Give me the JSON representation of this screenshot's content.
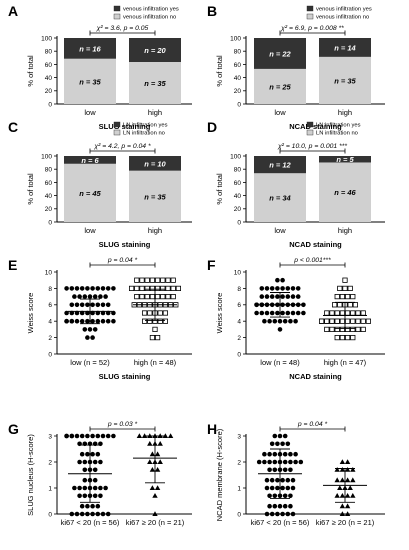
{
  "chart_data": [
    {
      "id": "A",
      "type": "bar",
      "stacked": true,
      "percent": true,
      "categories": [
        "low",
        "high"
      ],
      "series": [
        {
          "name": "venous infiltration no",
          "counts": [
            35,
            35
          ],
          "color": "#d0d0d0"
        },
        {
          "name": "venous infiltration yes",
          "counts": [
            16,
            20
          ],
          "color": "#333333"
        }
      ],
      "annotation": "χ² = 3.6, p = 0.05",
      "xlabel": "SLUG staining",
      "ylabel": "% of total",
      "ylim": [
        0,
        100
      ],
      "yticks": [
        0,
        20,
        40,
        60,
        80,
        100
      ],
      "legend": "top-right"
    },
    {
      "id": "B",
      "type": "bar",
      "stacked": true,
      "percent": true,
      "categories": [
        "low",
        "high"
      ],
      "series": [
        {
          "name": "venous infiltration no",
          "counts": [
            25,
            35
          ],
          "color": "#d0d0d0"
        },
        {
          "name": "venous infiltration yes",
          "counts": [
            22,
            14
          ],
          "color": "#333333"
        }
      ],
      "annotation": "χ² = 6.9, p = 0.008 **",
      "xlabel": "NCAD staining",
      "ylabel": "% of total",
      "ylim": [
        0,
        100
      ],
      "yticks": [
        0,
        20,
        40,
        60,
        80,
        100
      ],
      "legend": "top-right"
    },
    {
      "id": "C",
      "type": "bar",
      "stacked": true,
      "percent": true,
      "categories": [
        "low",
        "high"
      ],
      "series": [
        {
          "name": "LN infiltration no",
          "counts": [
            45,
            35
          ],
          "color": "#d0d0d0"
        },
        {
          "name": "LN infiltration yes",
          "counts": [
            6,
            10
          ],
          "color": "#333333"
        }
      ],
      "annotation": "χ² = 4.2, p = 0.04 *",
      "xlabel": "SLUG staining",
      "ylabel": "% of total",
      "ylim": [
        0,
        100
      ],
      "yticks": [
        0,
        20,
        40,
        60,
        80,
        100
      ],
      "legend": "top-right"
    },
    {
      "id": "D",
      "type": "bar",
      "stacked": true,
      "percent": true,
      "categories": [
        "low",
        "high"
      ],
      "series": [
        {
          "name": "LN infiltration no",
          "counts": [
            34,
            46
          ],
          "color": "#d0d0d0"
        },
        {
          "name": "LN infiltration yes",
          "counts": [
            12,
            5
          ],
          "color": "#333333"
        }
      ],
      "annotation": "χ² = 10.0, p = 0.001 ***",
      "xlabel": "NCAD staining",
      "ylabel": "% of total",
      "ylim": [
        0,
        100
      ],
      "yticks": [
        0,
        20,
        40,
        60,
        80,
        100
      ],
      "legend": "top-right"
    },
    {
      "id": "E",
      "type": "scatter",
      "categories": [
        "low (n = 52)",
        "high (n = 48)"
      ],
      "markers": [
        "filled-circle",
        "open-square"
      ],
      "groups": [
        {
          "mean": 5.2,
          "sd": 1.5,
          "counts": {
            "2": 2,
            "3": 3,
            "4": 12,
            "5": 10,
            "6": 8,
            "7": 7,
            "8": 10
          }
        },
        {
          "mean": 6.0,
          "sd": 1.9,
          "counts": {
            "2": 2,
            "3": 1,
            "4": 5,
            "5": 5,
            "6": 9,
            "7": 8,
            "8": 10,
            "9": 8
          }
        }
      ],
      "annotation": "p = 0.04 *",
      "xlabel": "SLUG staining",
      "ylabel": "Weiss score",
      "ylim": [
        0,
        10
      ],
      "yticks": [
        0,
        2,
        4,
        6,
        8,
        10
      ]
    },
    {
      "id": "F",
      "type": "scatter",
      "categories": [
        "low (n = 48)",
        "high (n = 47)"
      ],
      "markers": [
        "filled-circle",
        "open-square"
      ],
      "groups": [
        {
          "mean": 6.0,
          "sd": 1.5,
          "counts": {
            "3": 1,
            "4": 7,
            "5": 10,
            "6": 12,
            "7": 8,
            "8": 8,
            "9": 2
          }
        },
        {
          "mean": 4.7,
          "sd": 1.6,
          "counts": {
            "2": 4,
            "3": 8,
            "4": 14,
            "5": 8,
            "6": 5,
            "7": 4,
            "8": 3,
            "9": 1
          }
        }
      ],
      "annotation": "p < 0.001***",
      "xlabel": "NCAD staining",
      "ylabel": "Weiss score",
      "ylim": [
        0,
        10
      ],
      "yticks": [
        0,
        2,
        4,
        6,
        8,
        10
      ]
    },
    {
      "id": "G",
      "type": "scatter",
      "categories": [
        "ki67 < 20 (n = 56)",
        "ki67 ≥ 20 (n = 21)"
      ],
      "markers": [
        "filled-circle",
        "filled-triangle"
      ],
      "groups": [
        {
          "mean": 1.55,
          "sd": 1.1,
          "counts": {
            "0": 8,
            "0.3": 4,
            "0.7": 5,
            "1": 7,
            "1.3": 3,
            "1.7": 3,
            "2": 5,
            "2.3": 4,
            "2.7": 5,
            "3": 12
          }
        },
        {
          "mean": 2.15,
          "sd": 0.95,
          "counts": {
            "0": 1,
            "0.7": 1,
            "1": 2,
            "1.7": 2,
            "2": 3,
            "2.3": 2,
            "2.7": 3,
            "3": 7
          }
        }
      ],
      "annotation": "p = 0.03 *",
      "xlabel": "",
      "ylabel": "SLUG nucleus (H-score)",
      "ylim": [
        0,
        3
      ],
      "yticks": [
        0,
        1,
        2,
        3
      ]
    },
    {
      "id": "H",
      "type": "scatter",
      "categories": [
        "ki67 < 20 (n = 56)",
        "ki67 ≥ 20 (n = 21)"
      ],
      "markers": [
        "filled-circle",
        "filled-triangle"
      ],
      "groups": [
        {
          "mean": 1.55,
          "sd": 0.95,
          "counts": {
            "0": 6,
            "0.3": 5,
            "0.7": 5,
            "1": 6,
            "1.3": 6,
            "1.7": 5,
            "2": 9,
            "2.3": 7,
            "2.7": 4,
            "3": 3
          }
        },
        {
          "mean": 1.1,
          "sd": 0.65,
          "counts": {
            "0": 2,
            "0.3": 2,
            "0.7": 4,
            "1": 3,
            "1.3": 4,
            "1.7": 4,
            "2": 2
          }
        }
      ],
      "annotation": "p = 0.04 *",
      "xlabel": "",
      "ylabel": "NCAD membrane (H-score)",
      "ylim": [
        0,
        3
      ],
      "yticks": [
        0,
        1,
        2,
        3
      ]
    }
  ]
}
